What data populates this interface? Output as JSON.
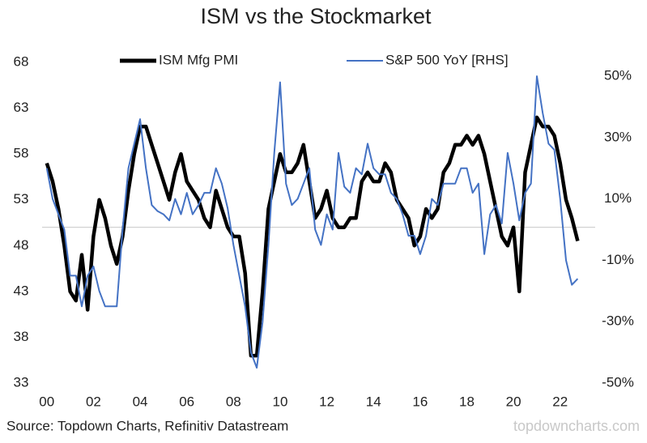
{
  "chart_data": {
    "type": "line",
    "title": "ISM vs the Stockmarket",
    "source": "Source: Topdown Charts, Refinitiv Datastream",
    "watermark": "topdowncharts.com",
    "x": [
      2000,
      2000.25,
      2000.5,
      2000.75,
      2001,
      2001.25,
      2001.5,
      2001.75,
      2002,
      2002.25,
      2002.5,
      2002.75,
      2003,
      2003.25,
      2003.5,
      2003.75,
      2004,
      2004.25,
      2004.5,
      2004.75,
      2005,
      2005.25,
      2005.5,
      2005.75,
      2006,
      2006.25,
      2006.5,
      2006.75,
      2007,
      2007.25,
      2007.5,
      2007.75,
      2008,
      2008.25,
      2008.5,
      2008.75,
      2009,
      2009.25,
      2009.5,
      2009.75,
      2010,
      2010.25,
      2010.5,
      2010.75,
      2011,
      2011.25,
      2011.5,
      2011.75,
      2012,
      2012.25,
      2012.5,
      2012.75,
      2013,
      2013.25,
      2013.5,
      2013.75,
      2014,
      2014.25,
      2014.5,
      2014.75,
      2015,
      2015.25,
      2015.5,
      2015.75,
      2016,
      2016.25,
      2016.5,
      2016.75,
      2017,
      2017.25,
      2017.5,
      2017.75,
      2018,
      2018.25,
      2018.5,
      2018.75,
      2019,
      2019.25,
      2019.5,
      2019.75,
      2020,
      2020.25,
      2020.5,
      2020.75,
      2021,
      2021.25,
      2021.5,
      2021.75,
      2022,
      2022.25,
      2022.5,
      2022.75
    ],
    "series": [
      {
        "name": "ISM Mfg PMI",
        "color": "#000000",
        "axis": "y",
        "values": [
          57,
          55,
          52,
          48,
          43,
          42,
          47,
          41,
          49,
          53,
          51,
          48,
          46,
          49,
          54,
          58,
          61,
          61,
          59,
          57,
          55,
          53,
          56,
          58,
          55,
          54,
          53,
          51,
          50,
          54,
          52,
          50,
          49,
          49,
          45,
          36,
          36,
          43,
          52,
          55,
          58,
          56,
          56,
          57,
          59,
          55,
          51,
          52,
          54,
          51,
          50,
          50,
          51,
          51,
          55,
          56,
          55,
          55,
          57,
          56,
          53,
          52,
          51,
          48,
          49,
          52,
          51,
          52,
          56,
          57,
          59,
          59,
          60,
          59,
          60,
          58,
          55,
          52,
          49,
          48,
          50,
          43,
          56,
          59,
          62,
          61,
          61,
          60,
          57,
          53,
          51,
          48.5
        ]
      },
      {
        "name": "S&P 500 YoY [RHS]",
        "color": "#4472c4",
        "axis": "y2",
        "values": [
          20,
          10,
          5,
          0,
          -15,
          -15,
          -25,
          -15,
          -12,
          -20,
          -25,
          -25,
          -25,
          0,
          20,
          28,
          36,
          20,
          8,
          6,
          5,
          3,
          10,
          5,
          12,
          5,
          8,
          12,
          12,
          20,
          15,
          7,
          -5,
          -15,
          -25,
          -40,
          -45,
          -30,
          -5,
          25,
          48,
          15,
          8,
          10,
          15,
          20,
          0,
          -5,
          5,
          0,
          25,
          14,
          12,
          20,
          18,
          28,
          20,
          18,
          18,
          12,
          10,
          5,
          -2,
          -2,
          -8,
          -2,
          10,
          8,
          15,
          15,
          15,
          20,
          20,
          12,
          15,
          -8,
          5,
          8,
          2,
          25,
          15,
          3,
          12,
          15,
          50,
          38,
          28,
          26,
          10,
          -10,
          -18,
          -16
        ]
      }
    ],
    "xlim": [
      1999.8,
      2023.5
    ],
    "xticks": [
      {
        "value": 2000,
        "label": "00"
      },
      {
        "value": 2002,
        "label": "02"
      },
      {
        "value": 2004,
        "label": "04"
      },
      {
        "value": 2006,
        "label": "06"
      },
      {
        "value": 2008,
        "label": "08"
      },
      {
        "value": 2010,
        "label": "10"
      },
      {
        "value": 2012,
        "label": "12"
      },
      {
        "value": 2014,
        "label": "14"
      },
      {
        "value": 2016,
        "label": "16"
      },
      {
        "value": 2018,
        "label": "18"
      },
      {
        "value": 2020,
        "label": "20"
      },
      {
        "value": 2022,
        "label": "22"
      }
    ],
    "ylim": [
      33,
      68
    ],
    "yticks": [
      33,
      38,
      43,
      48,
      53,
      58,
      63,
      68
    ],
    "y2lim": [
      -50,
      54.5
    ],
    "y2ticks": [
      {
        "value": -50,
        "label": "-50%"
      },
      {
        "value": -30,
        "label": "-30%"
      },
      {
        "value": -10,
        "label": "-10%"
      },
      {
        "value": 10,
        "label": "10%"
      },
      {
        "value": 30,
        "label": "30%"
      },
      {
        "value": 50,
        "label": "50%"
      }
    ],
    "reference_line": 50,
    "grid": false
  }
}
